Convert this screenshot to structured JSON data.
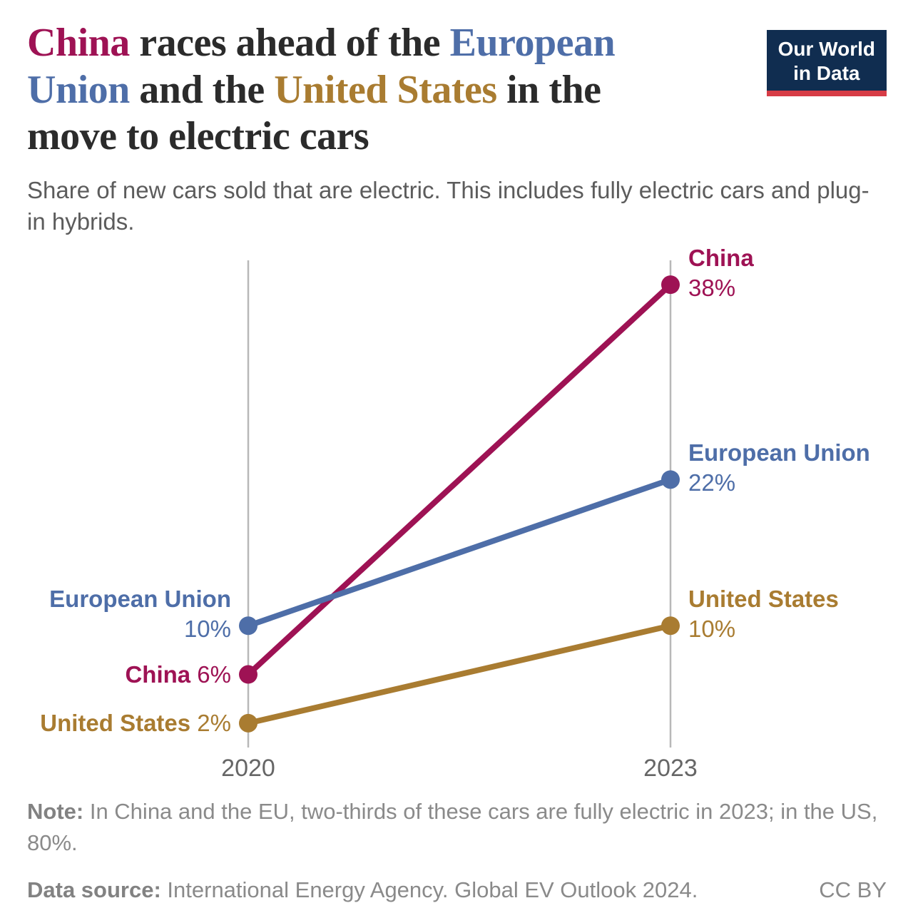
{
  "header": {
    "title_segments": [
      {
        "text": "China",
        "color": "#9e1254",
        "br_after": false
      },
      {
        "text": " races ahead of the ",
        "color": "#2b2b2b",
        "br_after": false
      },
      {
        "text": "European",
        "color": "#4e6ea8",
        "br_after": true
      },
      {
        "text": "Union",
        "color": "#4e6ea8",
        "br_after": false
      },
      {
        "text": " and the ",
        "color": "#2b2b2b",
        "br_after": false
      },
      {
        "text": "United States",
        "color": "#a97c31",
        "br_after": false
      },
      {
        "text": " in the",
        "color": "#2b2b2b",
        "br_after": true
      },
      {
        "text": "move to electric cars",
        "color": "#2b2b2b",
        "br_after": false
      }
    ],
    "subtitle": "Share of new cars sold that are electric. This includes fully electric cars and plug-in hybrids.",
    "logo": {
      "line1": "Our World",
      "line2": "in Data",
      "bg_color": "#102d50",
      "accent_color": "#d73c46"
    }
  },
  "chart_data": {
    "type": "line",
    "x": [
      2020,
      2023
    ],
    "x_tick_labels": [
      "2020",
      "2023"
    ],
    "unit": "%",
    "ylim": [
      0,
      40
    ],
    "grid": false,
    "legend_position": "direct-labels-both-ends",
    "series": [
      {
        "name": "China",
        "color": "#9e1254",
        "values": [
          6,
          38
        ],
        "left_label_style": "inline"
      },
      {
        "name": "European Union",
        "color": "#4e6ea8",
        "values": [
          10,
          22
        ],
        "left_label_style": "stacked"
      },
      {
        "name": "United States",
        "color": "#a97c31",
        "values": [
          2,
          10
        ],
        "left_label_style": "inline"
      }
    ],
    "axis_color": "#b8b8b8",
    "tick_label_color": "#666666"
  },
  "footer": {
    "note_label": "Note:",
    "note_text": " In China and the EU, two-thirds of these cars are fully electric in 2023; in the US, 80%.",
    "source_label": "Data source:",
    "source_text": " International Energy Agency. Global EV Outlook 2024.",
    "license": "CC BY"
  }
}
